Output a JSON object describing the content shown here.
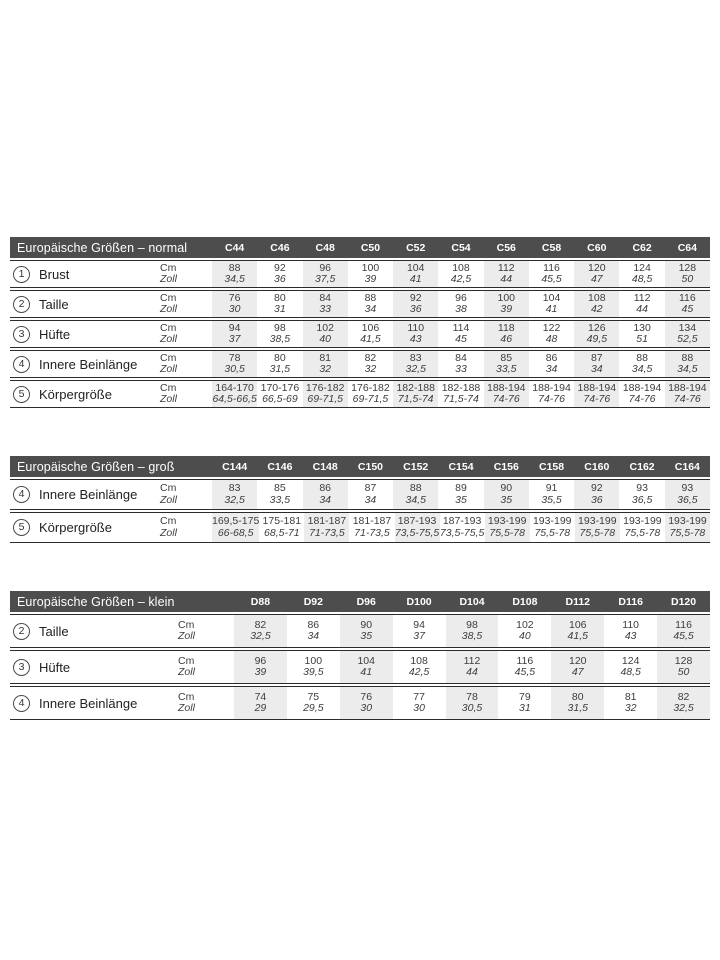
{
  "colors": {
    "header_bg": "#4d4d4d",
    "header_text": "#ffffff",
    "column_shade": "#ececec",
    "rule_line": "#2b2b2b",
    "page_bg": "#ffffff"
  },
  "units": {
    "cm": "Cm",
    "zoll": "Zoll"
  },
  "tables": [
    {
      "title": "Europäische Größen – normal",
      "columns": [
        "C44",
        "C46",
        "C48",
        "C50",
        "C52",
        "C54",
        "C56",
        "C58",
        "C60",
        "C62",
        "C64"
      ],
      "rows": [
        {
          "num": "1",
          "label": "Brust",
          "cm": [
            "88",
            "92",
            "96",
            "100",
            "104",
            "108",
            "112",
            "116",
            "120",
            "124",
            "128"
          ],
          "zoll": [
            "34,5",
            "36",
            "37,5",
            "39",
            "41",
            "42,5",
            "44",
            "45,5",
            "47",
            "48,5",
            "50"
          ]
        },
        {
          "num": "2",
          "label": "Taille",
          "cm": [
            "76",
            "80",
            "84",
            "88",
            "92",
            "96",
            "100",
            "104",
            "108",
            "112",
            "116"
          ],
          "zoll": [
            "30",
            "31",
            "33",
            "34",
            "36",
            "38",
            "39",
            "41",
            "42",
            "44",
            "45"
          ]
        },
        {
          "num": "3",
          "label": "Hüfte",
          "cm": [
            "94",
            "98",
            "102",
            "106",
            "110",
            "114",
            "118",
            "122",
            "126",
            "130",
            "134"
          ],
          "zoll": [
            "37",
            "38,5",
            "40",
            "41,5",
            "43",
            "45",
            "46",
            "48",
            "49,5",
            "51",
            "52,5"
          ]
        },
        {
          "num": "4",
          "label": "Innere Beinlänge",
          "cm": [
            "78",
            "80",
            "81",
            "82",
            "83",
            "84",
            "85",
            "86",
            "87",
            "88",
            "88"
          ],
          "zoll": [
            "30,5",
            "31,5",
            "32",
            "32",
            "32,5",
            "33",
            "33,5",
            "34",
            "34",
            "34,5",
            "34,5"
          ]
        },
        {
          "num": "5",
          "label": "Körpergröße",
          "cm": [
            "164-170",
            "170-176",
            "176-182",
            "176-182",
            "182-188",
            "182-188",
            "188-194",
            "188-194",
            "188-194",
            "188-194",
            "188-194"
          ],
          "zoll": [
            "64,5-66,5",
            "66,5-69",
            "69-71,5",
            "69-71,5",
            "71,5-74",
            "71,5-74",
            "74-76",
            "74-76",
            "74-76",
            "74-76",
            "74-76"
          ]
        }
      ]
    },
    {
      "title": "Europäische Größen – groß",
      "columns": [
        "C144",
        "C146",
        "C148",
        "C150",
        "C152",
        "C154",
        "C156",
        "C158",
        "C160",
        "C162",
        "C164"
      ],
      "rows": [
        {
          "num": "4",
          "label": "Innere Beinlänge",
          "cm": [
            "83",
            "85",
            "86",
            "87",
            "88",
            "89",
            "90",
            "91",
            "92",
            "93",
            "93"
          ],
          "zoll": [
            "32,5",
            "33,5",
            "34",
            "34",
            "34,5",
            "35",
            "35",
            "35,5",
            "36",
            "36,5",
            "36,5"
          ]
        },
        {
          "num": "5",
          "label": "Körpergröße",
          "cm": [
            "169,5-175",
            "175-181",
            "181-187",
            "181-187",
            "187-193",
            "187-193",
            "193-199",
            "193-199",
            "193-199",
            "193-199",
            "193-199"
          ],
          "zoll": [
            "66-68,5",
            "68,5-71",
            "71-73,5",
            "71-73,5",
            "73,5-75,5",
            "73,5-75,5",
            "75,5-78",
            "75,5-78",
            "75,5-78",
            "75,5-78",
            "75,5-78"
          ]
        }
      ]
    },
    {
      "title": "Europäische Größen – klein",
      "columns": [
        "D88",
        "D92",
        "D96",
        "D100",
        "D104",
        "D108",
        "D112",
        "D116",
        "D120"
      ],
      "rows": [
        {
          "num": "2",
          "label": "Taille",
          "cm": [
            "82",
            "86",
            "90",
            "94",
            "98",
            "102",
            "106",
            "110",
            "116"
          ],
          "zoll": [
            "32,5",
            "34",
            "35",
            "37",
            "38,5",
            "40",
            "41,5",
            "43",
            "45,5"
          ]
        },
        {
          "num": "3",
          "label": "Hüfte",
          "cm": [
            "96",
            "100",
            "104",
            "108",
            "112",
            "116",
            "120",
            "124",
            "128"
          ],
          "zoll": [
            "39",
            "39,5",
            "41",
            "42,5",
            "44",
            "45,5",
            "47",
            "48,5",
            "50"
          ]
        },
        {
          "num": "4",
          "label": "Innere Beinlänge",
          "cm": [
            "74",
            "75",
            "76",
            "77",
            "78",
            "79",
            "80",
            "81",
            "82"
          ],
          "zoll": [
            "29",
            "29,5",
            "30",
            "30",
            "30,5",
            "31",
            "31,5",
            "32",
            "32,5"
          ]
        }
      ]
    }
  ]
}
